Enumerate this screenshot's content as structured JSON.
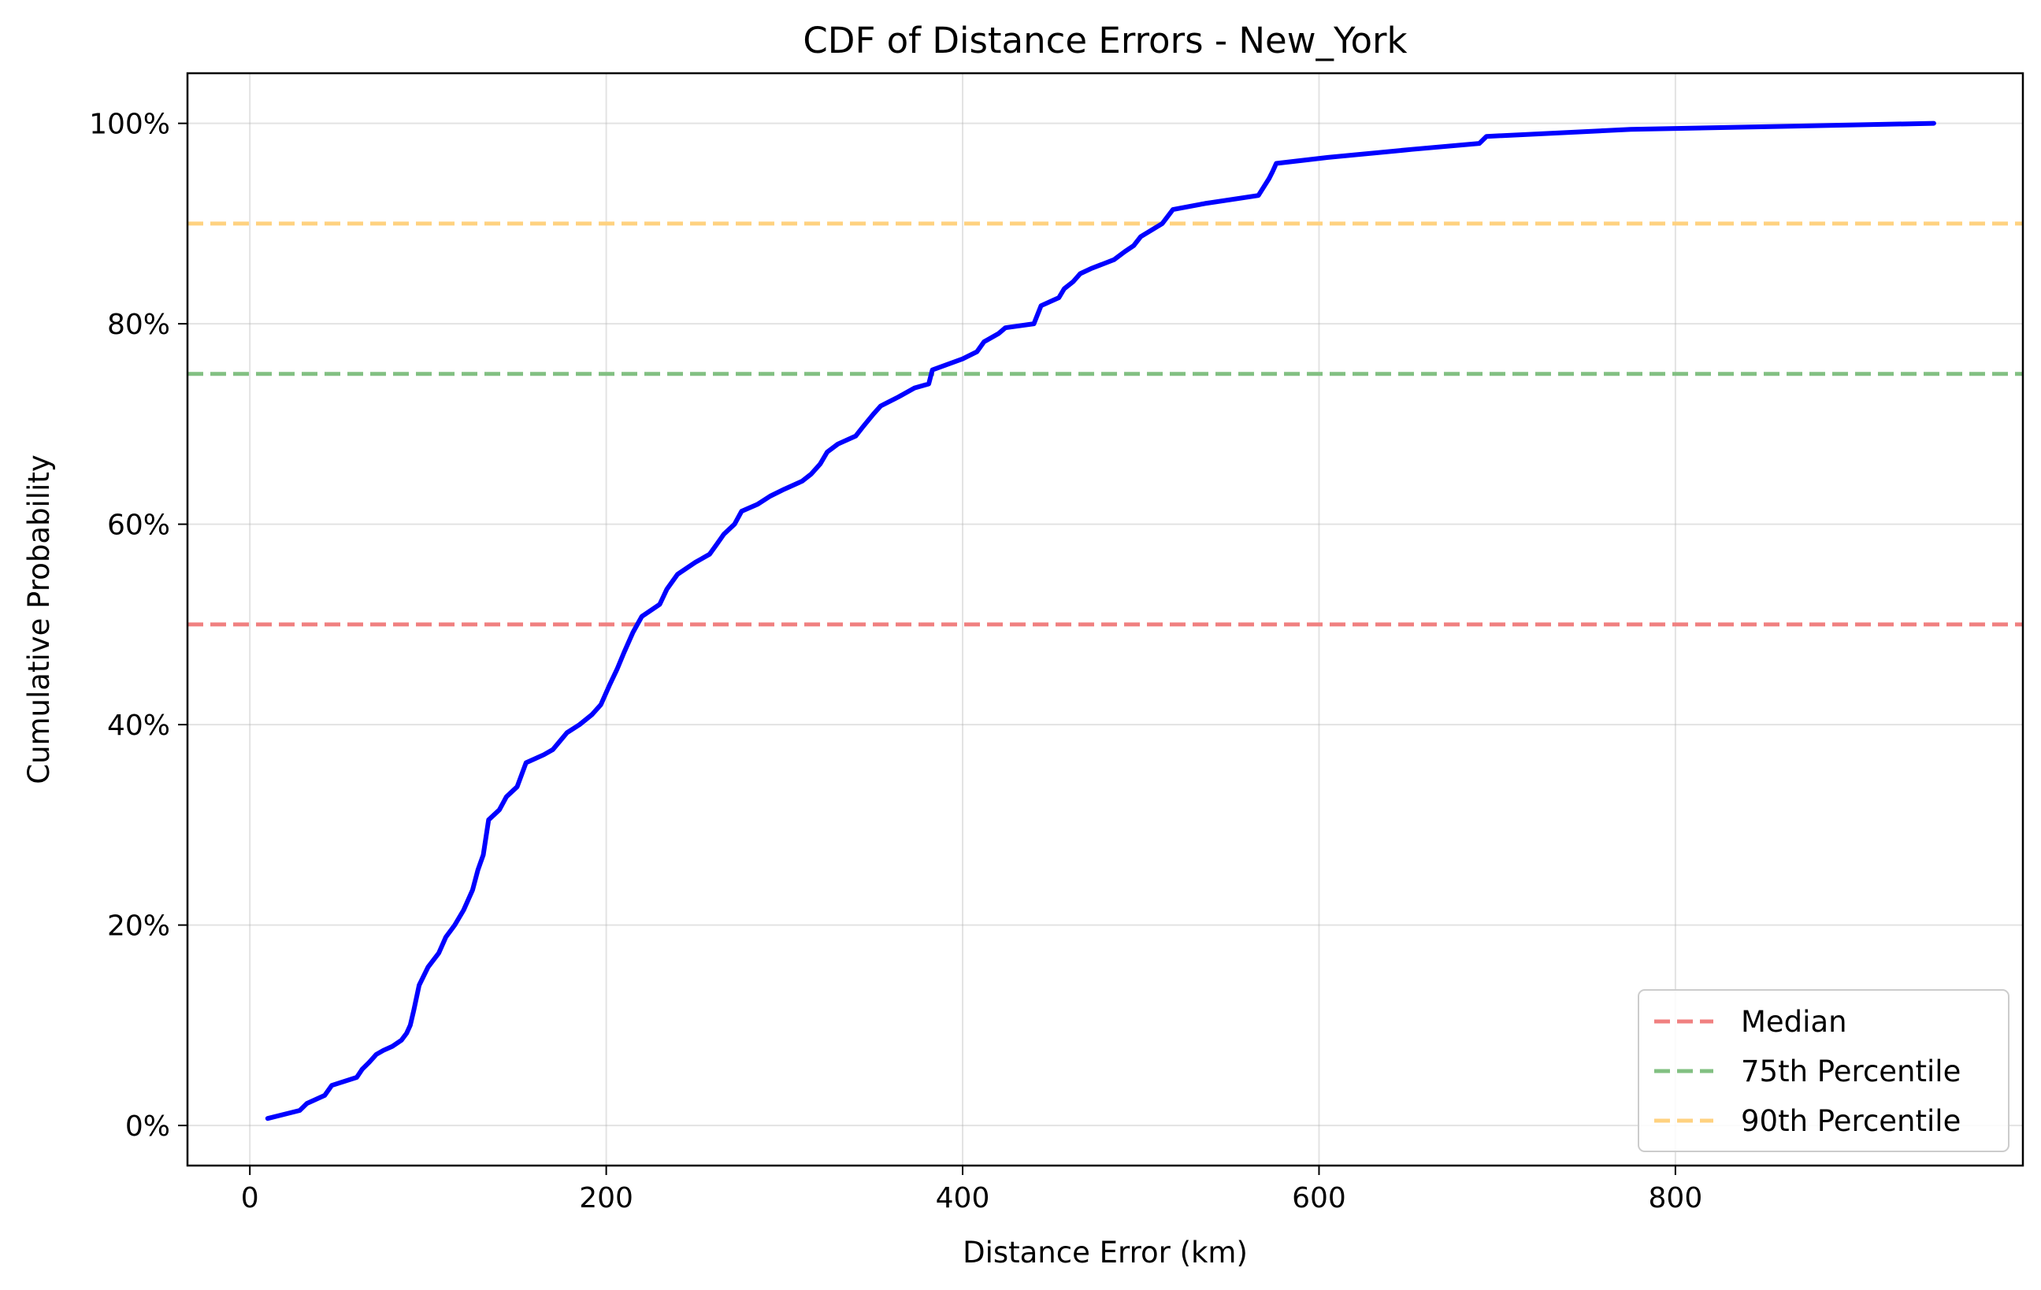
{
  "chart_data": {
    "type": "line",
    "title": "CDF of Distance Errors - New_York",
    "xlabel": "Distance Error (km)",
    "ylabel": "Cumulative Probability",
    "xlim": [
      -35,
      995
    ],
    "ylim": [
      -0.04,
      1.05
    ],
    "xticks": [
      0,
      200,
      400,
      600,
      800
    ],
    "xtick_labels": [
      "0",
      "200",
      "400",
      "600",
      "800"
    ],
    "yticks": [
      0,
      0.2,
      0.4,
      0.6,
      0.8,
      1.0
    ],
    "ytick_labels": [
      "0%",
      "20%",
      "40%",
      "60%",
      "80%",
      "100%"
    ],
    "grid": true,
    "legend_position": "lower-right",
    "series": [
      {
        "color": "#0000ff",
        "x": [
          10,
          28,
          32,
          42,
          46,
          60,
          63,
          67,
          71,
          75,
          80,
          85,
          88,
          90,
          92,
          95,
          100,
          106,
          110,
          115,
          120,
          125,
          128,
          131,
          134,
          140,
          144,
          150,
          155,
          165,
          170,
          178,
          185,
          192,
          197,
          202,
          206,
          210,
          215,
          220,
          230,
          234,
          240,
          250,
          258,
          262,
          266,
          272,
          276,
          285,
          292,
          300,
          310,
          315,
          320,
          324,
          330,
          340,
          344,
          350,
          354,
          364,
          373,
          381,
          383,
          400,
          408,
          412,
          420,
          424,
          440,
          444,
          454,
          457,
          462,
          466,
          472,
          485,
          491,
          496,
          500,
          512,
          518,
          536,
          566,
          572,
          574,
          576,
          605,
          652,
          690,
          694,
          775,
          945
        ],
        "y": [
          0.007,
          0.015,
          0.022,
          0.03,
          0.04,
          0.048,
          0.056,
          0.063,
          0.071,
          0.075,
          0.079,
          0.085,
          0.092,
          0.1,
          0.115,
          0.14,
          0.158,
          0.172,
          0.188,
          0.2,
          0.215,
          0.235,
          0.255,
          0.27,
          0.305,
          0.315,
          0.328,
          0.338,
          0.362,
          0.37,
          0.375,
          0.392,
          0.4,
          0.41,
          0.42,
          0.44,
          0.455,
          0.472,
          0.492,
          0.508,
          0.52,
          0.535,
          0.55,
          0.562,
          0.57,
          0.58,
          0.59,
          0.6,
          0.613,
          0.62,
          0.628,
          0.635,
          0.643,
          0.65,
          0.66,
          0.672,
          0.68,
          0.688,
          0.697,
          0.71,
          0.718,
          0.727,
          0.736,
          0.74,
          0.754,
          0.765,
          0.772,
          0.782,
          0.79,
          0.796,
          0.8,
          0.818,
          0.826,
          0.835,
          0.842,
          0.85,
          0.855,
          0.864,
          0.872,
          0.878,
          0.887,
          0.9,
          0.914,
          0.92,
          0.928,
          0.945,
          0.952,
          0.96,
          0.966,
          0.974,
          0.98,
          0.987,
          0.994,
          1.0
        ]
      }
    ],
    "reference_lines": [
      {
        "name": "Median",
        "y": 0.5,
        "color": "#f08080",
        "dash": "dashed"
      },
      {
        "name": "75th Percentile",
        "y": 0.75,
        "color": "#82c082",
        "dash": "dashed"
      },
      {
        "name": "90th Percentile",
        "y": 0.9,
        "color": "#ffd280",
        "dash": "dashed"
      }
    ]
  }
}
